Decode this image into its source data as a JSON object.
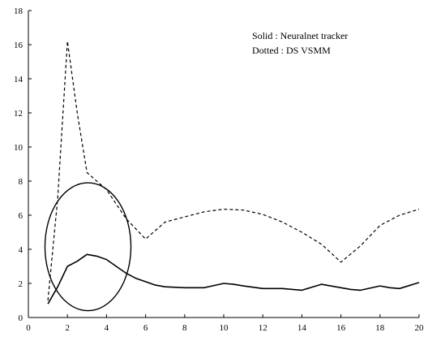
{
  "chart_data": {
    "type": "line",
    "title": "",
    "xlabel": "",
    "ylabel": "",
    "xlim": [
      0,
      20
    ],
    "ylim": [
      0,
      18
    ],
    "x_ticks": [
      0,
      2,
      4,
      6,
      8,
      10,
      12,
      14,
      16,
      18,
      20
    ],
    "y_ticks": [
      0,
      2,
      4,
      6,
      8,
      10,
      12,
      14,
      16,
      18
    ],
    "grid": false,
    "legend": {
      "placement": "top-right",
      "lines": [
        "Solid : Neuralnet tracker",
        "Dotted : DS VSMM"
      ]
    },
    "series": [
      {
        "style": "solid",
        "color": "#000000",
        "x": [
          1,
          1.5,
          2,
          2.5,
          3,
          3.5,
          4,
          4.5,
          5,
          5.5,
          6,
          6.5,
          7,
          8,
          9,
          10,
          10.5,
          11,
          12,
          13,
          14,
          15,
          16,
          16.5,
          17,
          18,
          18.5,
          19,
          20
        ],
        "y": [
          0.8,
          1.8,
          3.0,
          3.3,
          3.7,
          3.6,
          3.4,
          3.0,
          2.6,
          2.3,
          2.1,
          1.9,
          1.8,
          1.75,
          1.75,
          2.0,
          1.95,
          1.85,
          1.7,
          1.7,
          1.6,
          1.95,
          1.75,
          1.65,
          1.6,
          1.85,
          1.75,
          1.7,
          2.05
        ]
      },
      {
        "style": "dashed",
        "color": "#000000",
        "x": [
          1,
          1.5,
          2,
          2.5,
          3,
          4,
          5,
          6,
          7,
          8,
          9,
          10,
          11,
          12,
          13,
          14,
          15,
          16,
          17,
          18,
          19,
          20
        ],
        "y": [
          1.0,
          7.0,
          16.2,
          12.0,
          8.5,
          7.5,
          5.8,
          4.6,
          5.6,
          5.9,
          6.2,
          6.35,
          6.3,
          6.05,
          5.6,
          5.0,
          4.3,
          3.25,
          4.2,
          5.4,
          6.0,
          6.35
        ]
      }
    ],
    "annotations": [
      {
        "shape": "ellipse",
        "center": [
          3.05,
          4.15
        ],
        "radius_x": 2.2,
        "radius_y": 3.75
      }
    ]
  }
}
